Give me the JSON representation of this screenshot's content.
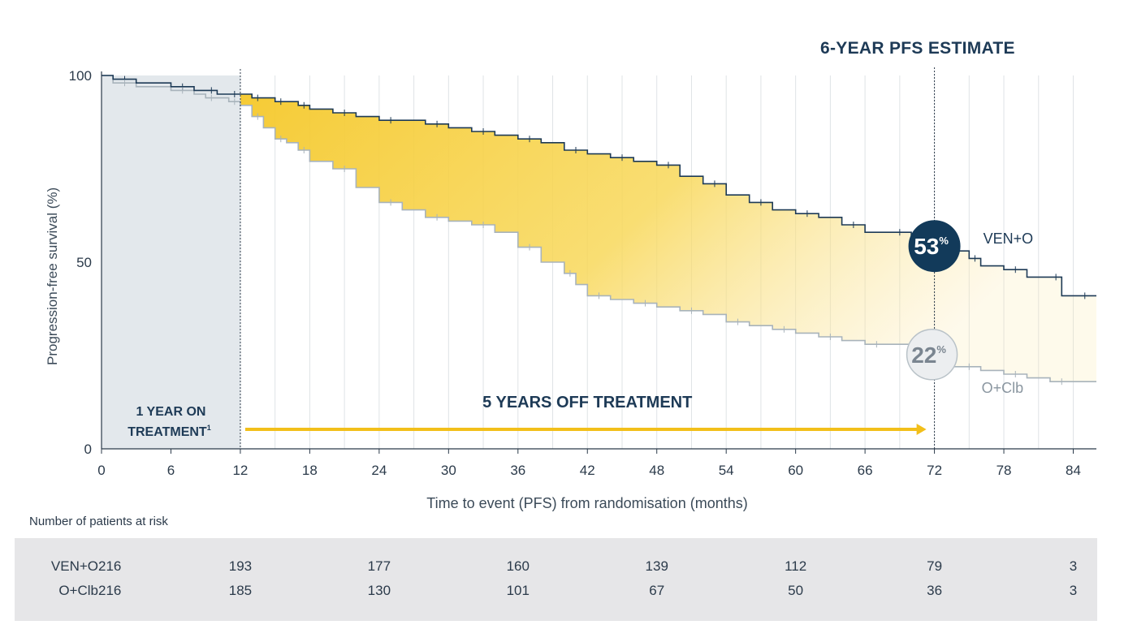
{
  "title": "6-YEAR PFS ESTIMATE",
  "chart_data": {
    "type": "line",
    "title": "6-YEAR PFS ESTIMATE",
    "xlabel": "Time to event (PFS) from randomisation (months)",
    "ylabel": "Progression-free survival (%)",
    "xlim": [
      0,
      86
    ],
    "ylim": [
      0,
      100
    ],
    "xticks": [
      0,
      6,
      12,
      18,
      24,
      30,
      36,
      42,
      48,
      54,
      60,
      66,
      72,
      78,
      84
    ],
    "yticks": [
      0,
      50,
      100
    ],
    "series": [
      {
        "name": "VEN+O",
        "color": "#1d3a56",
        "x": [
          0,
          1,
          3,
          6,
          8,
          9,
          10,
          11,
          12,
          13,
          14,
          15,
          16,
          17,
          18,
          20,
          22,
          24,
          26,
          28,
          30,
          32,
          34,
          36,
          38,
          40,
          42,
          44,
          46,
          48,
          50,
          52,
          54,
          56,
          58,
          60,
          62,
          64,
          66,
          68,
          70,
          72,
          74,
          75,
          76,
          78,
          80,
          82,
          83,
          84,
          86
        ],
        "y": [
          100,
          99,
          98,
          97,
          96,
          96,
          95,
          95,
          95,
          94,
          94,
          93,
          93,
          92,
          91,
          90,
          89,
          88,
          88,
          87,
          86,
          85,
          84,
          83,
          82,
          80,
          79,
          78,
          77,
          76,
          73,
          71,
          68,
          66,
          64,
          63,
          62,
          60,
          58,
          58,
          57,
          53,
          53,
          51,
          49,
          48,
          46,
          46,
          41,
          41,
          41
        ]
      },
      {
        "name": "O+Clb",
        "color": "#9aa7b0",
        "x": [
          0,
          1,
          3,
          6,
          8,
          9,
          10,
          11,
          12,
          13,
          14,
          15,
          16,
          17,
          18,
          20,
          22,
          24,
          26,
          28,
          30,
          32,
          34,
          36,
          38,
          40,
          41,
          42,
          44,
          46,
          48,
          50,
          52,
          54,
          56,
          58,
          60,
          62,
          64,
          66,
          68,
          70,
          72,
          74,
          76,
          78,
          80,
          82,
          84,
          86
        ],
        "y": [
          100,
          98,
          97,
          96,
          95,
          94,
          94,
          93,
          92,
          89,
          86,
          83,
          82,
          80,
          77,
          75,
          70,
          66,
          64,
          62,
          61,
          60,
          58,
          54,
          50,
          47,
          44,
          41,
          40,
          39,
          38,
          37,
          36,
          34,
          33,
          32,
          31,
          30,
          29,
          28,
          28,
          27,
          22,
          22,
          21,
          20,
          19,
          18,
          18,
          18
        ]
      }
    ],
    "annotations": {
      "ven_estimate": "53",
      "clb_estimate": "22",
      "percent_symbol": "%",
      "on_treatment_line1": "1 YEAR ON",
      "on_treatment_line2": "TREATMENT",
      "on_treatment_sup": "1",
      "off_treatment": "5 YEARS OFF TREATMENT",
      "ven_label": "VEN+O",
      "clb_label": "O+Clb"
    }
  },
  "risk_table": {
    "title": "Number of patients at risk",
    "rows": [
      {
        "label": "VEN+O",
        "values": [
          "216",
          "193",
          "177",
          "160",
          "139",
          "112",
          "79",
          "3"
        ]
      },
      {
        "label": "O+Clb",
        "values": [
          "216",
          "185",
          "130",
          "101",
          "67",
          "50",
          "36",
          "3"
        ]
      }
    ],
    "months": [
      0,
      12,
      24,
      36,
      48,
      60,
      72,
      84
    ]
  }
}
